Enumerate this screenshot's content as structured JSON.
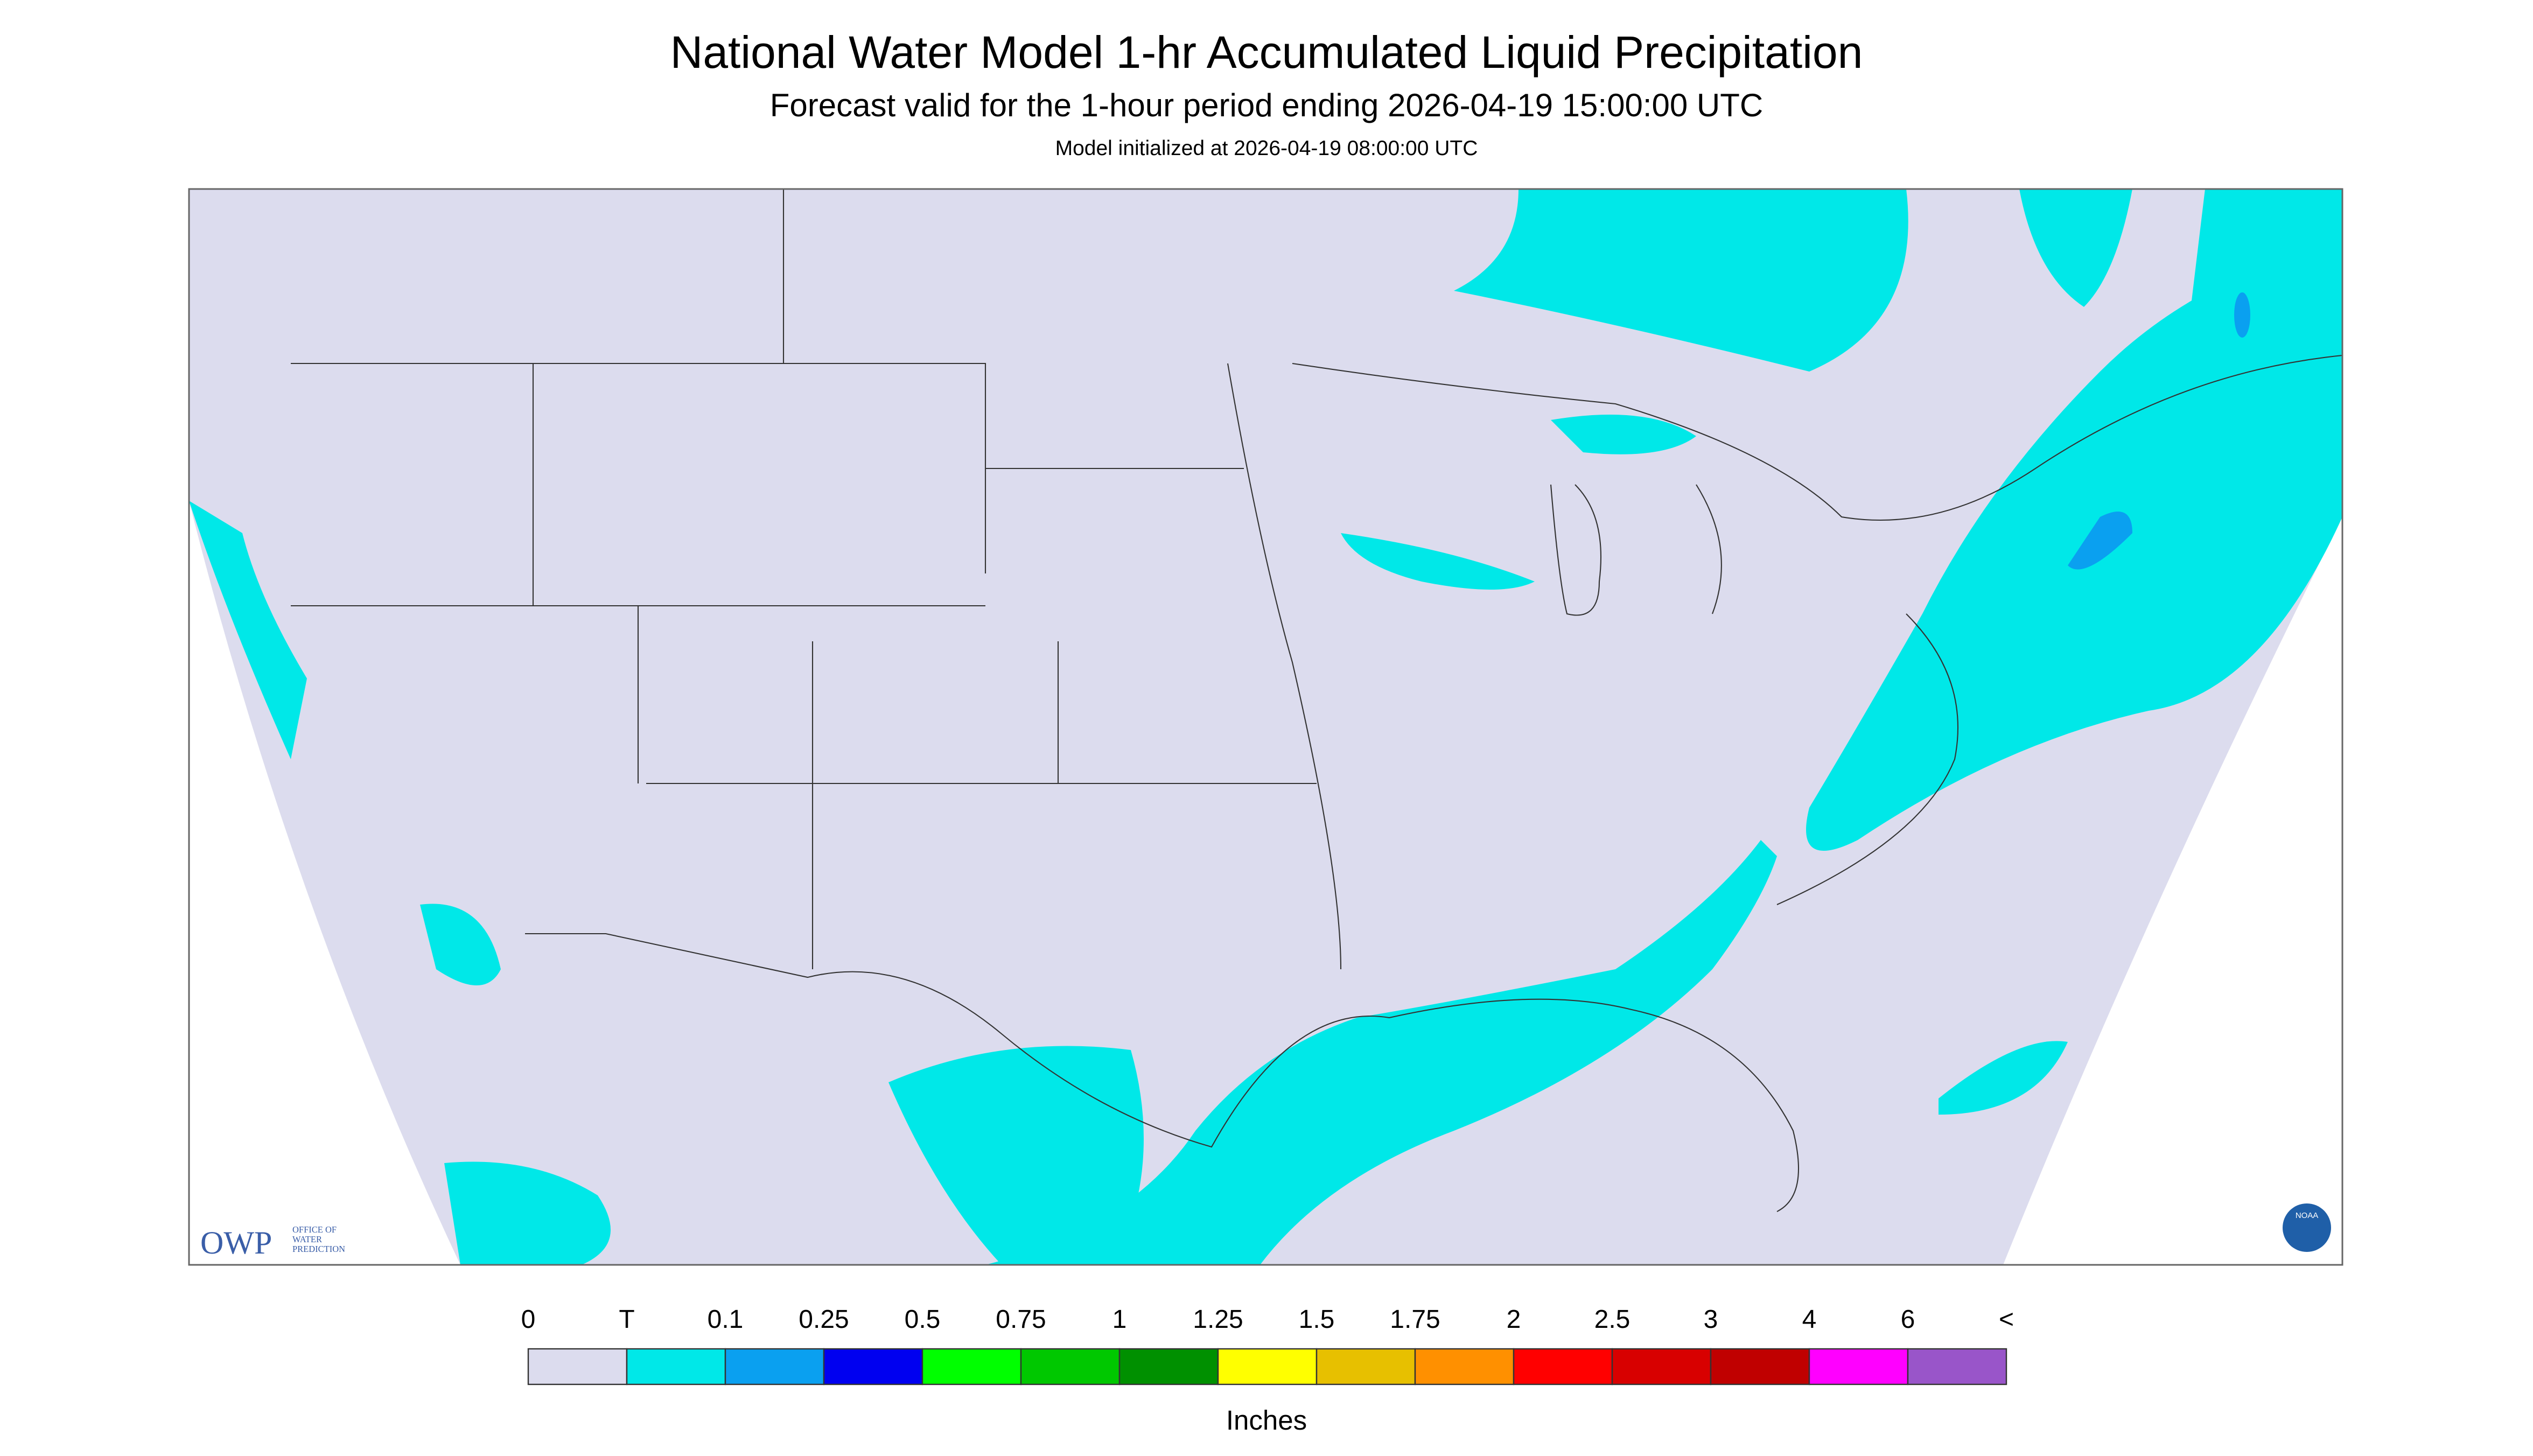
{
  "header": {
    "title": "National Water Model 1-hr Accumulated Liquid Precipitation",
    "subtitle": "Forecast valid for the 1-hour period ending 2026-04-19 15:00:00 UTC",
    "note": "Model initialized at 2026-04-19 08:00:00 UTC"
  },
  "logos": {
    "owp": "OWP",
    "owp_name": [
      "OFFICE OF",
      "WATER",
      "PREDICTION"
    ],
    "noaa": "NOAA"
  },
  "legend": {
    "labels": [
      "0",
      "T",
      "0.1",
      "0.25",
      "0.5",
      "0.75",
      "1",
      "1.25",
      "1.5",
      "1.75",
      "2",
      "2.5",
      "3",
      "4",
      "6",
      "<"
    ],
    "colors": [
      "#dcdcee",
      "#00e8e8",
      "#0aa0f0",
      "#0000f0",
      "#00ff00",
      "#00c800",
      "#009000",
      "#ffff00",
      "#e7c000",
      "#ff9000",
      "#ff0000",
      "#d80000",
      "#c00000",
      "#ff00ff",
      "#9955c9"
    ],
    "units": "Inches"
  }
}
